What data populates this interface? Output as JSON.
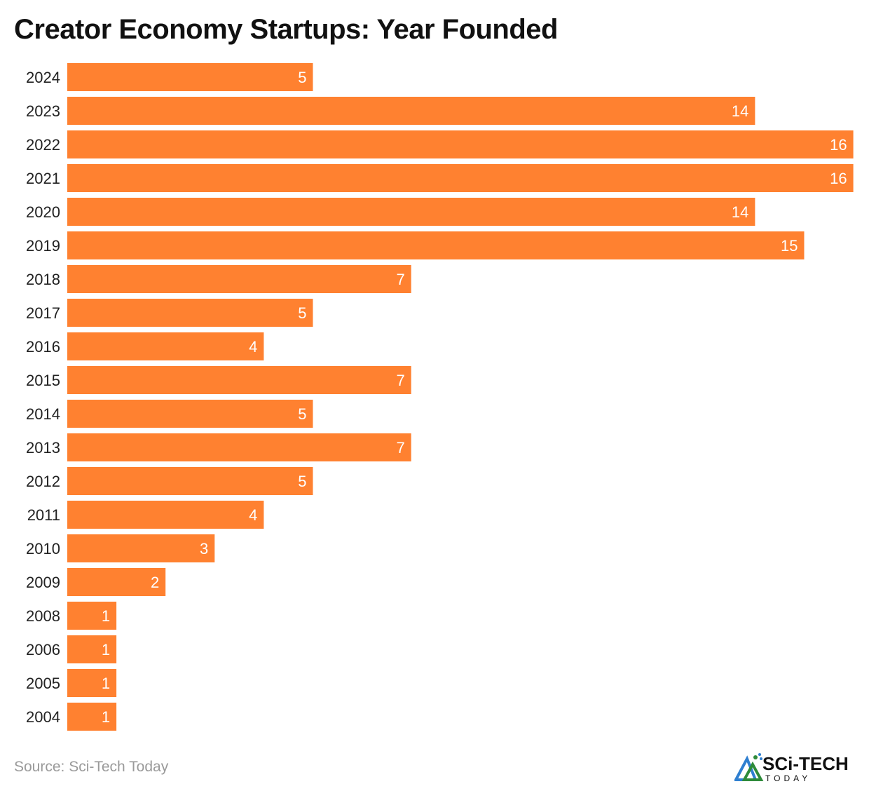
{
  "chart_data": {
    "type": "bar",
    "orientation": "horizontal",
    "title": "Creator Economy Startups: Year Founded",
    "categories": [
      "2024",
      "2023",
      "2022",
      "2021",
      "2020",
      "2019",
      "2018",
      "2017",
      "2016",
      "2015",
      "2014",
      "2013",
      "2012",
      "2011",
      "2010",
      "2009",
      "2008",
      "2006",
      "2005",
      "2004"
    ],
    "values": [
      5,
      14,
      16,
      16,
      14,
      15,
      7,
      5,
      4,
      7,
      5,
      7,
      5,
      4,
      3,
      2,
      1,
      1,
      1,
      1
    ],
    "xlim": [
      0,
      16
    ],
    "grid": false,
    "data_labels": true,
    "bar_color": "#FF8130",
    "label_color": "#FFFFFF"
  },
  "footer": {
    "source": "Source: Sci-Tech Today"
  },
  "logo": {
    "text_main": "SCi-TECH",
    "text_sub": "TODAY"
  }
}
